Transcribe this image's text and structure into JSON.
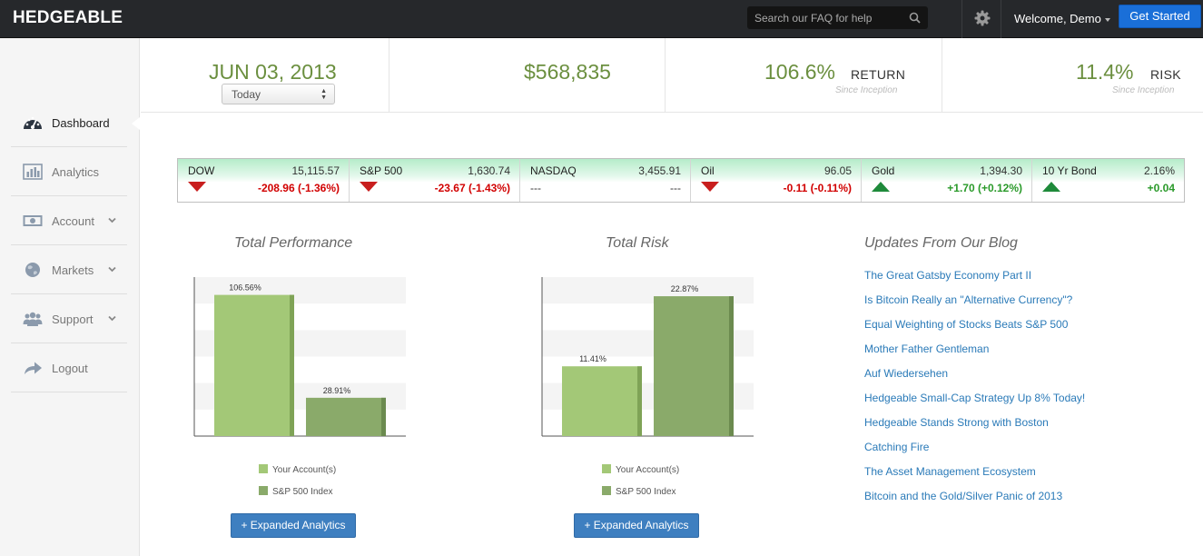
{
  "topbar": {
    "brand": "HEDGEABLE",
    "search_placeholder": "Search our FAQ for help",
    "welcome": "Welcome, Demo",
    "get_started": "Get Started"
  },
  "sidebar": {
    "items": [
      {
        "label": "Dashboard",
        "icon": "dashboard-icon"
      },
      {
        "label": "Analytics",
        "icon": "bar-chart-icon"
      },
      {
        "label": "Account",
        "icon": "money-icon"
      },
      {
        "label": "Markets",
        "icon": "globe-icon"
      },
      {
        "label": "Support",
        "icon": "users-icon"
      },
      {
        "label": "Logout",
        "icon": "share-arrow-icon"
      }
    ]
  },
  "stats": {
    "date": "JUN 03, 2013",
    "date_select": "Today",
    "value": "$568,835",
    "return_value": "106.6%",
    "return_label": "RETURN",
    "return_sub": "Since Inception",
    "risk_value": "11.4%",
    "risk_label": "RISK",
    "risk_sub": "Since Inception"
  },
  "ticker": [
    {
      "name": "DOW",
      "price": "15,115.57",
      "change": "-208.96 (-1.36%)",
      "direction": "down"
    },
    {
      "name": "S&P 500",
      "price": "1,630.74",
      "change": "-23.67 (-1.43%)",
      "direction": "down"
    },
    {
      "name": "NASDAQ",
      "price": "3,455.91",
      "change": "---",
      "left": "---",
      "direction": "flat"
    },
    {
      "name": "Oil",
      "price": "96.05",
      "change": "-0.11 (-0.11%)",
      "direction": "down"
    },
    {
      "name": "Gold",
      "price": "1,394.30",
      "change": "+1.70 (+0.12%)",
      "direction": "up"
    },
    {
      "name": "10 Yr Bond",
      "price": "2.16%",
      "change": "+0.04",
      "direction": "up"
    }
  ],
  "colors": {
    "up": "#2a9a2a",
    "down": "#d10000",
    "your_account": "#a3c877",
    "sp500": "#8aaa6a"
  },
  "performance": {
    "title": "Total Performance",
    "button": "+ Expanded Analytics"
  },
  "risk": {
    "title": "Total Risk",
    "button": "+ Expanded Analytics"
  },
  "chart_data": [
    {
      "type": "bar",
      "title": "Total Performance",
      "series": [
        {
          "name": "Your Account(s)",
          "values": [
            106.56
          ],
          "label": "106.56%"
        },
        {
          "name": "S&P 500 Index",
          "values": [
            28.91
          ],
          "label": "28.91%"
        }
      ],
      "ylim": [
        0,
        120
      ],
      "grid": true
    },
    {
      "type": "bar",
      "title": "Total Risk",
      "series": [
        {
          "name": "Your Account(s)",
          "values": [
            11.41
          ],
          "label": "11.41%"
        },
        {
          "name": "S&P 500 Index",
          "values": [
            22.87
          ],
          "label": "22.87%"
        }
      ],
      "ylim": [
        0,
        26
      ],
      "grid": true
    }
  ],
  "blog": {
    "title": "Updates From Our Blog",
    "posts": [
      "The Great Gatsby Economy Part II",
      "Is Bitcoin Really an \"Alternative Currency\"?",
      "Equal Weighting of Stocks Beats S&P 500",
      "Mother Father Gentleman",
      "Auf Wiedersehen",
      "Hedgeable Small-Cap Strategy Up 8% Today!",
      "Hedgeable Stands Strong with Boston",
      "Catching Fire",
      "The Asset Management Ecosystem",
      "Bitcoin and the Gold/Silver Panic of 2013"
    ]
  }
}
